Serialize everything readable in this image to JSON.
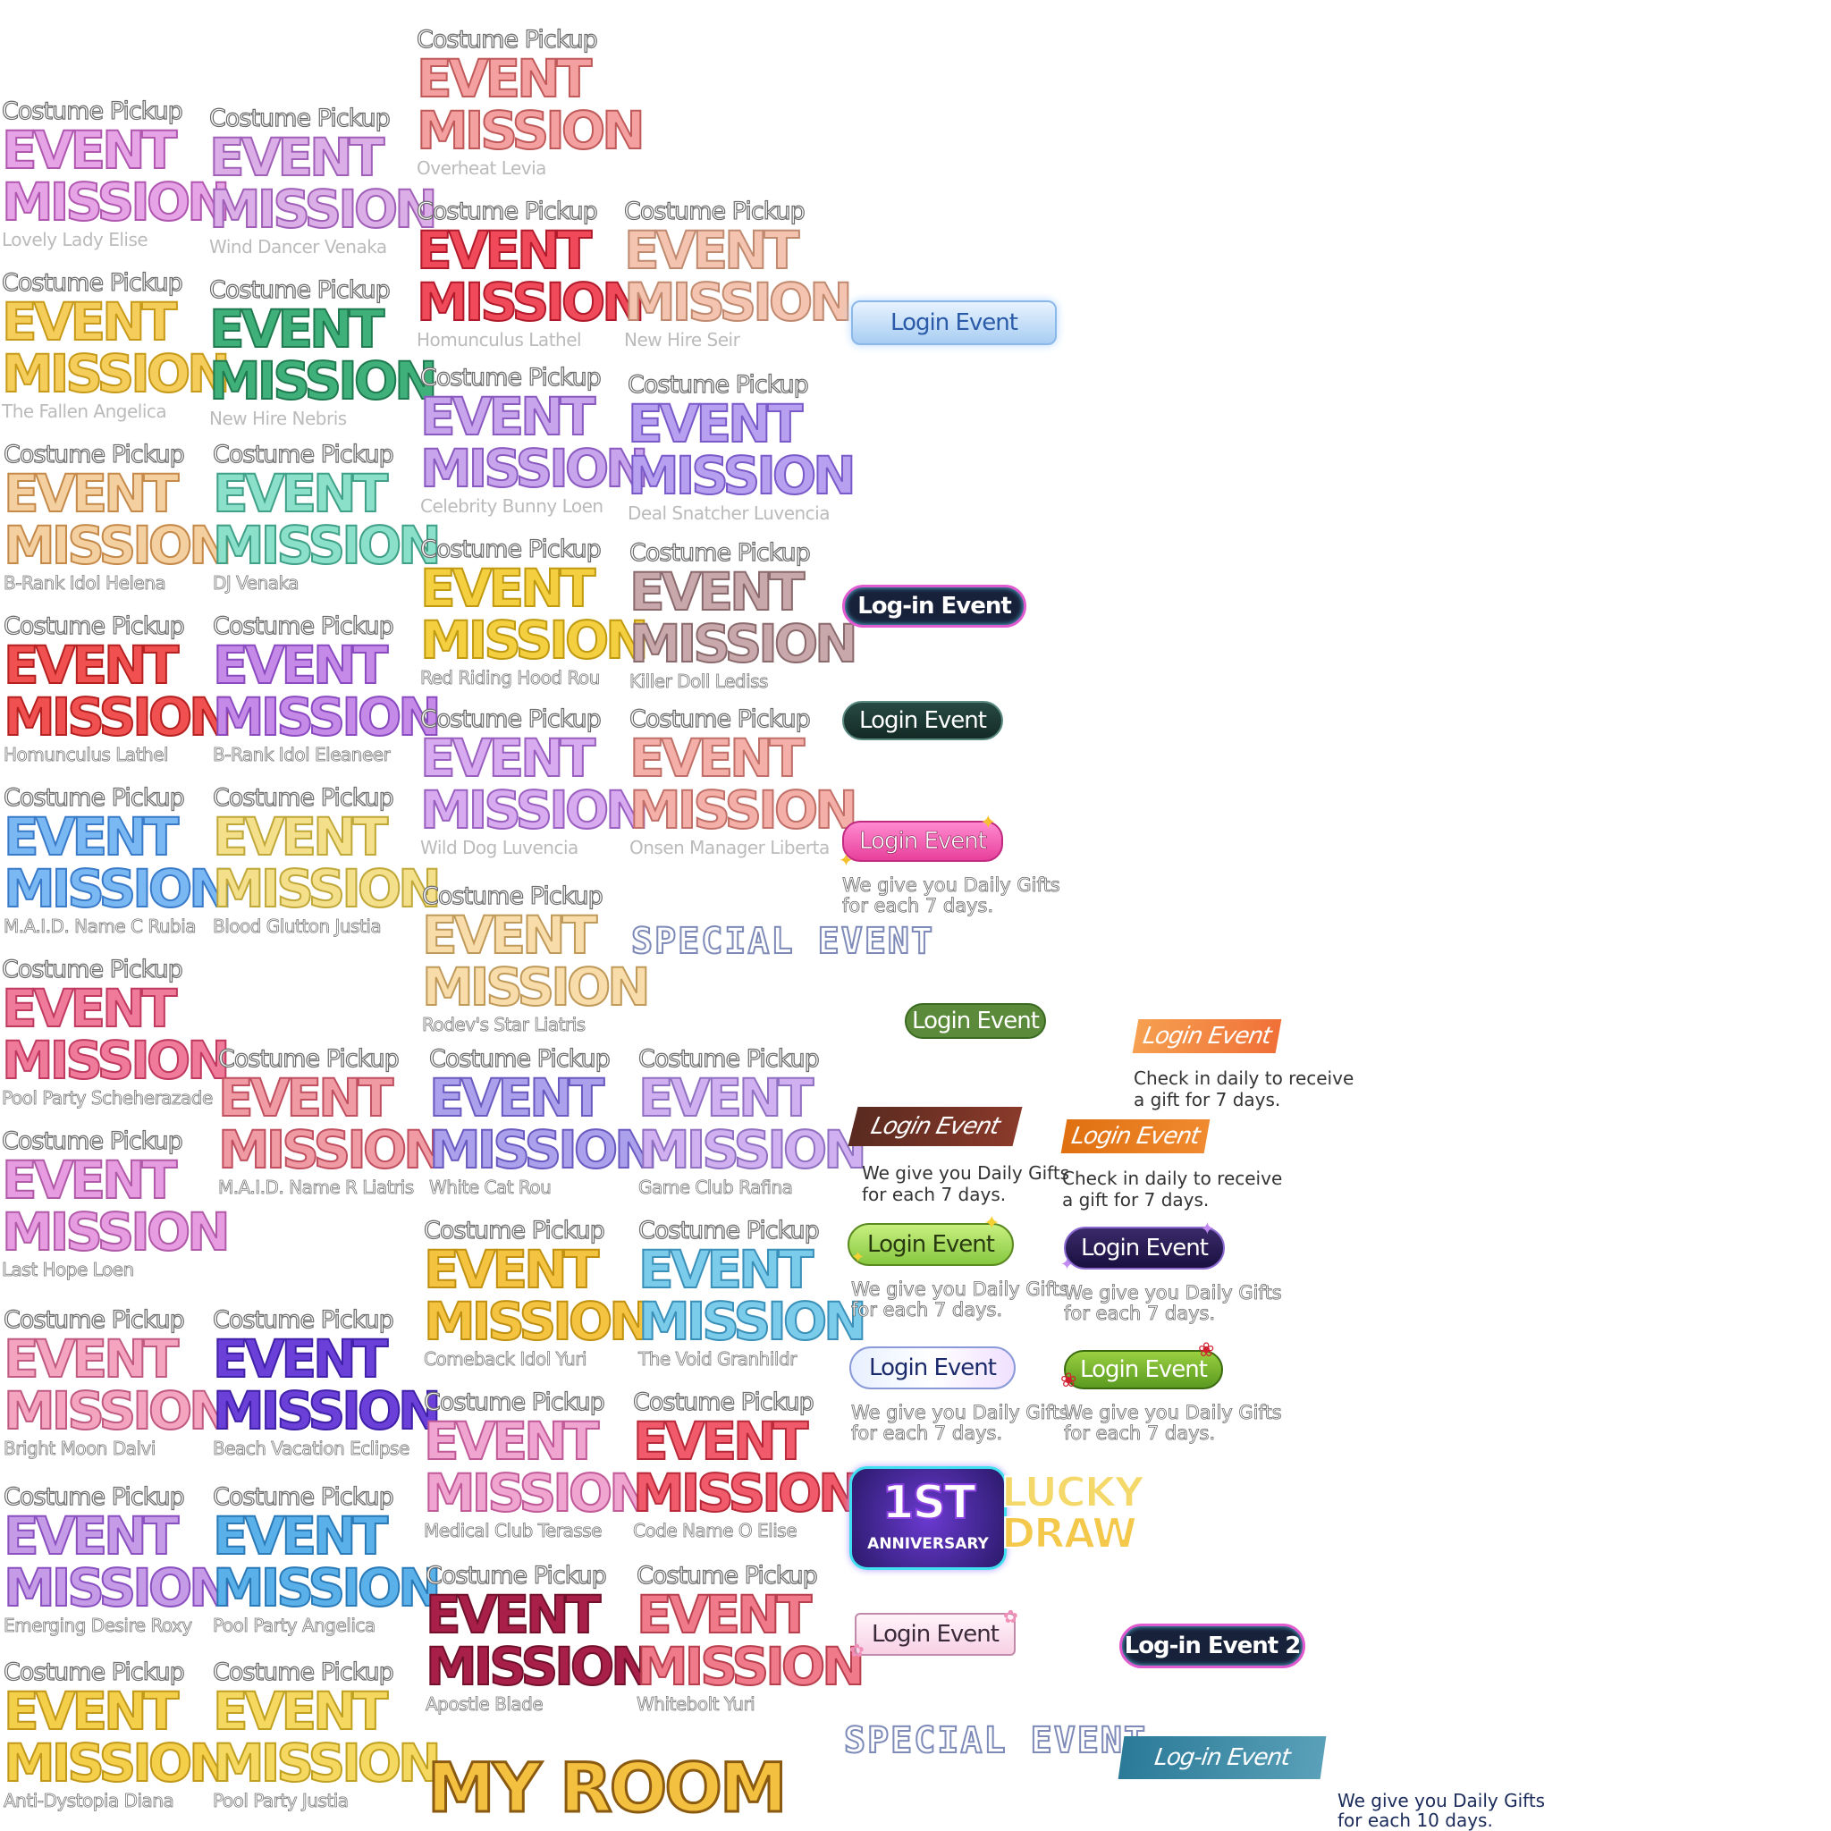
{
  "common": {
    "costume": "Costume Pickup",
    "event": "EVENT",
    "mission": "MISSION"
  },
  "tiles": [
    {
      "name": "Lovely Lady Elise",
      "color": "#e6a4e6",
      "stroke": "#b057b0"
    },
    {
      "name": "The Fallen Angelica",
      "color": "#f5cd5a",
      "stroke": "#c79a1a"
    },
    {
      "name": "B-Rank Idol Helena",
      "color": "#f4cfa0",
      "stroke": "#c58a4a"
    },
    {
      "name": "Homunculus Lathel",
      "color": "#f05050",
      "stroke": "#b52020"
    },
    {
      "name": "M.A.I.D. Name C Rubia",
      "color": "#7ab8f4",
      "stroke": "#3a7bc9"
    },
    {
      "name": "Pool Party Scheherazade",
      "color": "#f07a9a",
      "stroke": "#c03a60"
    },
    {
      "name": "Last Hope Loen",
      "color": "#e79be0",
      "stroke": "#b05aa8"
    },
    {
      "name": "Bright Moon Dalvi",
      "color": "#f5a4c0",
      "stroke": "#c05a80"
    },
    {
      "name": "Emerging Desire Roxy",
      "color": "#c59be8",
      "stroke": "#8a50c0"
    },
    {
      "name": "Anti-Dystopia Diana",
      "color": "#f4cf4a",
      "stroke": "#c2981a"
    },
    {
      "name": "Wind Dancer Venaka",
      "color": "#dcaee8",
      "stroke": "#a060b8"
    },
    {
      "name": "New Hire Nebris",
      "color": "#40b07a",
      "stroke": "#207a50"
    },
    {
      "name": "DJ Venaka",
      "color": "#8ae0c8",
      "stroke": "#40a088"
    },
    {
      "name": "B-Rank Idol Eleaneer",
      "color": "#c58ae8",
      "stroke": "#8a4ac0"
    },
    {
      "name": "Blood Glutton Justia",
      "color": "#f4e08a",
      "stroke": "#c0a83a"
    },
    {
      "name": "M.A.I.D. Name R Liatris",
      "color": "#f09aa4",
      "stroke": "#c05060"
    },
    {
      "name": "Beach Vacation Eclipse",
      "color": "#6a40d8",
      "stroke": "#4020a8"
    },
    {
      "name": "Pool Party Angelica",
      "color": "#5ab0e8",
      "stroke": "#2a7ab8"
    },
    {
      "name": "Pool Party Justia",
      "color": "#f4d860",
      "stroke": "#c0a020"
    },
    {
      "name": "Overheat Levia",
      "color": "#f5a0a0",
      "stroke": "#c05a5a"
    },
    {
      "name": "Homunculus Lathel",
      "color": "#f04a5a",
      "stroke": "#b01a2a"
    },
    {
      "name": "Celebrity Bunny Loen",
      "color": "#c8a4ec",
      "stroke": "#8a5ac0"
    },
    {
      "name": "Red Riding Hood Rou",
      "color": "#f4d040",
      "stroke": "#c09a10"
    },
    {
      "name": "Wild Dog Luvencia",
      "color": "#d8aaf0",
      "stroke": "#9a60c0"
    },
    {
      "name": "Rodev's Star Liatris",
      "color": "#f8dcaa",
      "stroke": "#c09a5a"
    },
    {
      "name": "White Cat Rou",
      "color": "#aaa0ec",
      "stroke": "#6a5ac0"
    },
    {
      "name": "Comeback Idol Yuri",
      "color": "#f4c440",
      "stroke": "#c09010"
    },
    {
      "name": "Medical Club Terasse",
      "color": "#f0a4d0",
      "stroke": "#c05a98"
    },
    {
      "name": "Apostle Blade",
      "color": "#a8204a",
      "stroke": "#70102a"
    },
    {
      "name": "New Hire Seir",
      "color": "#f4c4b0",
      "stroke": "#c08a70"
    },
    {
      "name": "Deal Snatcher Luvencia",
      "color": "#b8a0f0",
      "stroke": "#7a5ac8"
    },
    {
      "name": "Killer Doll Lediss",
      "color": "#c8a8aa",
      "stroke": "#8a6a6c"
    },
    {
      "name": "Onsen Manager Liberta",
      "color": "#f4b0a8",
      "stroke": "#c07068"
    },
    {
      "name": "Game Club Rafina",
      "color": "#d0b0f0",
      "stroke": "#9070c0"
    },
    {
      "name": "The Void Granhildr",
      "color": "#7accea",
      "stroke": "#3a90b8"
    },
    {
      "name": "Code Name O Elise",
      "color": "#f05a6a",
      "stroke": "#b82a3a"
    },
    {
      "name": "Whitebolt Yuri",
      "color": "#f07a8a",
      "stroke": "#b8404e"
    }
  ],
  "login_buttons": {
    "b1": "Login Event",
    "b2": "Log-in Event",
    "b3": "Login Event",
    "b4": "Login Event",
    "b5": "Login Event",
    "b6": "Login Event",
    "b7": "Login Event",
    "b8": "Login Event",
    "b9": "Login Event",
    "b10": "Login Event",
    "b11": "Login Event",
    "b12": "Login Event",
    "b13": "Login Event",
    "b14": "Log-in Event 2",
    "b15": "Log-in Event"
  },
  "captions": {
    "daily7_a": "We give you Daily Gifts",
    "daily7_b": "for each 7 days.",
    "check_a": "Check in daily to receive",
    "check_b": "a gift for 7 days.",
    "daily10_a": "We give you Daily Gifts",
    "daily10_b": "for each 10 days."
  },
  "special_event": "SPECIAL EVENT",
  "anniversary": {
    "top": "1ST",
    "bottom": "ANNIVERSARY"
  },
  "lucky_draw": {
    "line1": "LUCKY",
    "line2": "DRAW"
  },
  "my_room": "MY ROOM"
}
